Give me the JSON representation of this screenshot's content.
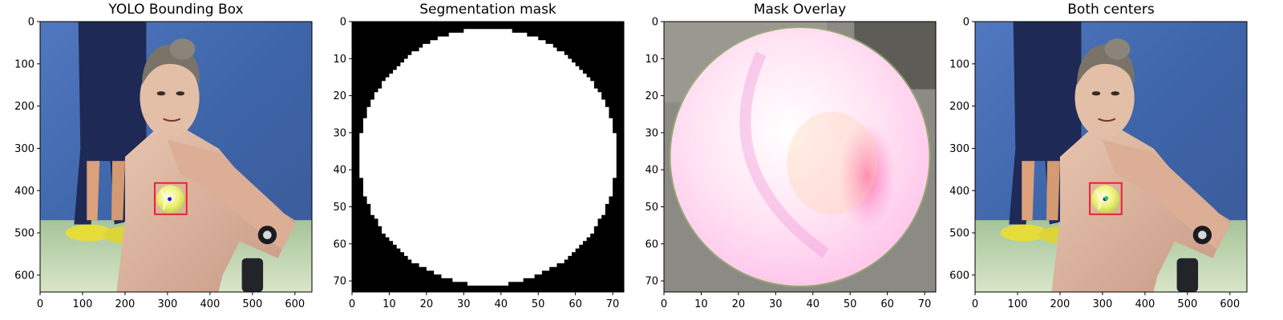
{
  "figure": {
    "panels": [
      {
        "id": "yolo",
        "title": "YOLO Bounding Box",
        "kind": "photo",
        "x_ticks": [
          "0",
          "100",
          "200",
          "300",
          "400",
          "500",
          "600"
        ],
        "y_ticks": [
          "0",
          "100",
          "200",
          "300",
          "400",
          "500",
          "600"
        ],
        "x_range": [
          0,
          640
        ],
        "y_range": [
          0,
          640
        ],
        "markers": {
          "bbox": {
            "x0": 270,
            "y0": 382,
            "x1": 345,
            "y1": 456,
            "color": "#e8262c"
          },
          "centers": [
            {
              "x": 305,
              "y": 420,
              "color": "#1a1aff"
            }
          ]
        }
      },
      {
        "id": "mask",
        "title": "Segmentation mask",
        "kind": "mask",
        "x_ticks": [
          "0",
          "10",
          "20",
          "30",
          "40",
          "50",
          "60",
          "70"
        ],
        "y_ticks": [
          "0",
          "10",
          "20",
          "30",
          "40",
          "50",
          "60",
          "70"
        ],
        "x_range": [
          0,
          73
        ],
        "y_range": [
          0,
          73
        ]
      },
      {
        "id": "overlay",
        "title": "Mask Overlay",
        "kind": "overlay",
        "x_ticks": [
          "0",
          "10",
          "20",
          "30",
          "40",
          "50",
          "60",
          "70"
        ],
        "y_ticks": [
          "0",
          "10",
          "20",
          "30",
          "40",
          "50",
          "60",
          "70"
        ],
        "x_range": [
          0,
          73
        ],
        "y_range": [
          0,
          73
        ]
      },
      {
        "id": "centers",
        "title": "Both centers",
        "kind": "photo",
        "x_ticks": [
          "0",
          "100",
          "200",
          "300",
          "400",
          "500",
          "600"
        ],
        "y_ticks": [
          "0",
          "100",
          "200",
          "300",
          "400",
          "500",
          "600"
        ],
        "x_range": [
          0,
          640
        ],
        "y_range": [
          0,
          640
        ],
        "markers": {
          "bbox": {
            "x0": 270,
            "y0": 382,
            "x1": 345,
            "y1": 456,
            "color": "#e8262c"
          },
          "centers": [
            {
              "x": 306,
              "y": 420,
              "color": "#1a1aff"
            },
            {
              "x": 309,
              "y": 418,
              "color": "#22cc22"
            }
          ]
        }
      }
    ]
  },
  "colors": {
    "background_blue": "#3e64a8",
    "ball_yellow": "#eef27a",
    "mask_white": "#ffffff",
    "mask_black": "#000000",
    "overlay_pink": "#ffc4ef"
  }
}
